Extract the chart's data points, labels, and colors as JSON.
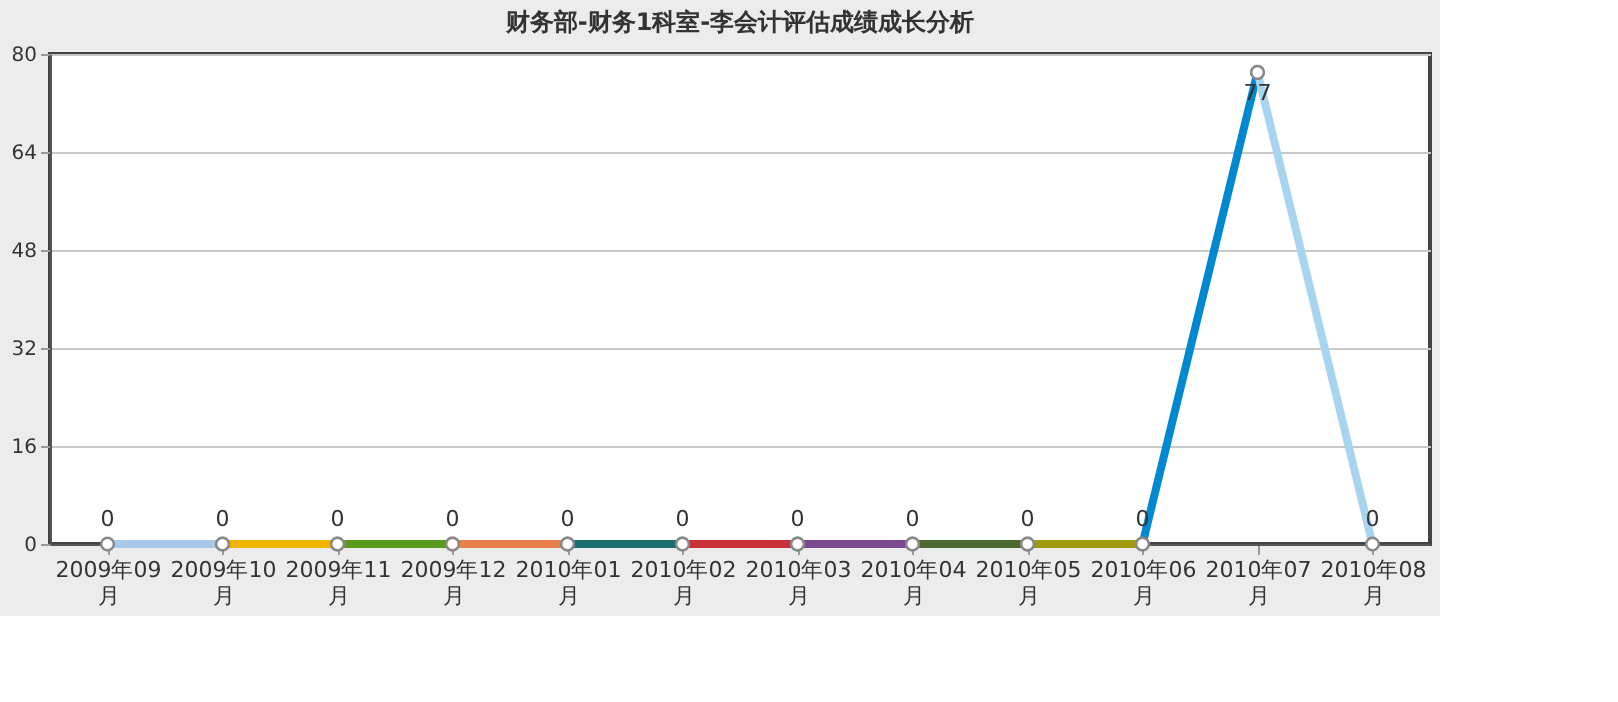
{
  "chart_data": {
    "type": "line",
    "title": "财务部-财务1科室-李会计评估成绩成长分析",
    "categories": [
      "2009年09月",
      "2009年10月",
      "2009年11月",
      "2009年12月",
      "2010年01月",
      "2010年02月",
      "2010年03月",
      "2010年04月",
      "2010年05月",
      "2010年06月",
      "2010年07月",
      "2010年08月"
    ],
    "series": [
      {
        "color": "#a8c8e8",
        "values": [
          0,
          0,
          null,
          null,
          null,
          null,
          null,
          null,
          null,
          null,
          null,
          null
        ],
        "value_labels": [
          "0",
          null,
          null,
          null,
          null,
          null,
          null,
          null,
          null,
          null,
          null,
          null
        ]
      },
      {
        "color": "#f0b400",
        "values": [
          null,
          0,
          0,
          null,
          null,
          null,
          null,
          null,
          null,
          null,
          null,
          null
        ],
        "value_labels": [
          null,
          "0",
          null,
          null,
          null,
          null,
          null,
          null,
          null,
          null,
          null,
          null
        ]
      },
      {
        "color": "#5a9a1e",
        "values": [
          null,
          null,
          0,
          0,
          null,
          null,
          null,
          null,
          null,
          null,
          null,
          null
        ],
        "value_labels": [
          null,
          null,
          "0",
          null,
          null,
          null,
          null,
          null,
          null,
          null,
          null,
          null
        ]
      },
      {
        "color": "#e8804a",
        "values": [
          null,
          null,
          null,
          0,
          0,
          null,
          null,
          null,
          null,
          null,
          null,
          null
        ],
        "value_labels": [
          null,
          null,
          null,
          "0",
          null,
          null,
          null,
          null,
          null,
          null,
          null,
          null
        ]
      },
      {
        "color": "#1a6e6e",
        "values": [
          null,
          null,
          null,
          null,
          0,
          0,
          null,
          null,
          null,
          null,
          null,
          null
        ],
        "value_labels": [
          null,
          null,
          null,
          null,
          "0",
          null,
          null,
          null,
          null,
          null,
          null,
          null
        ]
      },
      {
        "color": "#c8303a",
        "values": [
          null,
          null,
          null,
          null,
          null,
          0,
          0,
          null,
          null,
          null,
          null,
          null
        ],
        "value_labels": [
          null,
          null,
          null,
          null,
          null,
          "0",
          null,
          null,
          null,
          null,
          null,
          null
        ]
      },
      {
        "color": "#7a4a90",
        "values": [
          null,
          null,
          null,
          null,
          null,
          null,
          0,
          0,
          null,
          null,
          null,
          null
        ],
        "value_labels": [
          null,
          null,
          null,
          null,
          null,
          null,
          "0",
          null,
          null,
          null,
          null,
          null
        ]
      },
      {
        "color": "#4a6a30",
        "values": [
          null,
          null,
          null,
          null,
          null,
          null,
          null,
          0,
          0,
          null,
          null,
          null
        ],
        "value_labels": [
          null,
          null,
          null,
          null,
          null,
          null,
          null,
          "0",
          null,
          null,
          null,
          null
        ]
      },
      {
        "color": "#a09a10",
        "values": [
          null,
          null,
          null,
          null,
          null,
          null,
          null,
          null,
          0,
          0,
          null,
          null
        ],
        "value_labels": [
          null,
          null,
          null,
          null,
          null,
          null,
          null,
          null,
          "0",
          null,
          null,
          null
        ]
      },
      {
        "color": "#0088d0",
        "values": [
          null,
          null,
          null,
          null,
          null,
          null,
          null,
          null,
          null,
          0,
          77,
          null
        ],
        "value_labels": [
          null,
          null,
          null,
          null,
          null,
          null,
          null,
          null,
          null,
          "0",
          null,
          null
        ]
      },
      {
        "color": "#a8d4f0",
        "values": [
          null,
          null,
          null,
          null,
          null,
          null,
          null,
          null,
          null,
          null,
          77,
          0
        ],
        "value_labels": [
          null,
          null,
          null,
          null,
          null,
          null,
          null,
          null,
          null,
          null,
          "77",
          "0"
        ]
      }
    ],
    "ylim": [
      0,
      80
    ],
    "yticks": [
      0,
      16,
      32,
      48,
      64,
      80
    ],
    "grid": "y",
    "marker": "circle"
  }
}
